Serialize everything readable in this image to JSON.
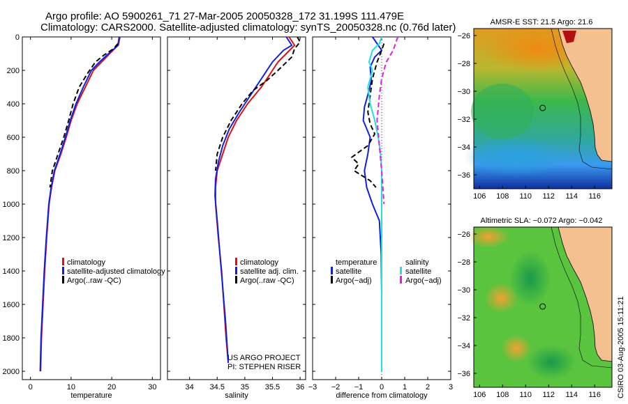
{
  "header": {
    "line1": "Argo profile: AO 5900261_71 27-Mar-2005 20050328_172 31.199S 111.479E",
    "line2": "Climatology: CARS2000. Satellite-adjusted climatology: synTS_20050328.nc (0.76d later)"
  },
  "colors": {
    "climatology": "#e01010",
    "satellite": "#1020e0",
    "argo": "#000000",
    "salinity": "#20e0e0",
    "argo_adj": "#e020e0",
    "land": "#f5c090"
  },
  "chart_data": [
    {
      "type": "line",
      "title": "",
      "xlabel": "temperature",
      "ylabel": "",
      "xlim": [
        -2,
        32
      ],
      "ylim": [
        0,
        2050
      ],
      "y_inverted": true,
      "x_ticks": [
        "0",
        "10",
        "20",
        "30"
      ],
      "y_ticks": [
        "0",
        "200",
        "400",
        "600",
        "800",
        "1000",
        "1200",
        "1400",
        "1600",
        "1800",
        "2000"
      ],
      "legend": [
        "climatology",
        "satellite-adjusted climatology",
        "Argo(..raw -QC)"
      ],
      "series": [
        {
          "name": "climatology",
          "style": "solid",
          "color": "#e01010",
          "points": [
            [
              21.8,
              0
            ],
            [
              21.5,
              50
            ],
            [
              19.5,
              100
            ],
            [
              17.5,
              150
            ],
            [
              15.5,
              200
            ],
            [
              13.5,
              300
            ],
            [
              11.5,
              400
            ],
            [
              10,
              500
            ],
            [
              8.8,
              600
            ],
            [
              7.5,
              700
            ],
            [
              6,
              800
            ],
            [
              5.2,
              900
            ],
            [
              4.6,
              1000
            ],
            [
              4,
              1200
            ],
            [
              3.5,
              1400
            ],
            [
              3.1,
              1600
            ],
            [
              2.7,
              1800
            ],
            [
              2.5,
              2000
            ]
          ]
        },
        {
          "name": "satellite-adjusted climatology",
          "style": "solid",
          "color": "#1020e0",
          "points": [
            [
              22,
              0
            ],
            [
              21.6,
              50
            ],
            [
              19.2,
              100
            ],
            [
              17,
              150
            ],
            [
              15,
              200
            ],
            [
              13,
              300
            ],
            [
              11.2,
              400
            ],
            [
              9.8,
              500
            ],
            [
              8.6,
              600
            ],
            [
              7.3,
              700
            ],
            [
              5.9,
              800
            ],
            [
              5.1,
              900
            ],
            [
              4.5,
              1000
            ],
            [
              3.9,
              1200
            ],
            [
              3.4,
              1400
            ],
            [
              3,
              1600
            ],
            [
              2.6,
              1800
            ],
            [
              2.4,
              2000
            ]
          ]
        },
        {
          "name": "Argo(..raw -QC)",
          "style": "dashed",
          "color": "#000000",
          "points": [
            [
              21.5,
              40
            ],
            [
              20.5,
              70
            ],
            [
              18,
              110
            ],
            [
              16,
              150
            ],
            [
              14,
              220
            ],
            [
              12,
              300
            ],
            [
              10.5,
              400
            ],
            [
              9.4,
              500
            ],
            [
              8.2,
              600
            ],
            [
              6.8,
              700
            ],
            [
              5.4,
              800
            ],
            [
              4.8,
              900
            ]
          ]
        }
      ]
    },
    {
      "type": "line",
      "title": "",
      "xlabel": "salinity",
      "ylabel": "",
      "xlim": [
        33.6,
        36.1
      ],
      "ylim": [
        0,
        2050
      ],
      "y_inverted": true,
      "x_ticks": [
        "34",
        "34.5",
        "35",
        "35.5",
        "36"
      ],
      "y_ticks": [],
      "legend": [
        "climatology",
        "satellite adj. clim.",
        "Argo(..raw -QC)"
      ],
      "annotations": [
        "US ARGO PROJECT",
        "PI: STEPHEN RISER"
      ],
      "series": [
        {
          "name": "climatology",
          "style": "solid",
          "color": "#e01010",
          "points": [
            [
              35.8,
              0
            ],
            [
              35.9,
              50
            ],
            [
              35.75,
              100
            ],
            [
              35.6,
              150
            ],
            [
              35.5,
              200
            ],
            [
              35.3,
              300
            ],
            [
              35.05,
              400
            ],
            [
              34.85,
              500
            ],
            [
              34.7,
              600
            ],
            [
              34.6,
              700
            ],
            [
              34.5,
              800
            ],
            [
              34.47,
              900
            ],
            [
              34.47,
              1000
            ],
            [
              34.52,
              1200
            ],
            [
              34.58,
              1400
            ],
            [
              34.62,
              1600
            ],
            [
              34.66,
              1800
            ],
            [
              34.7,
              1950
            ]
          ]
        },
        {
          "name": "satellite adj. clim.",
          "style": "solid",
          "color": "#1020e0",
          "points": [
            [
              35.75,
              0
            ],
            [
              35.85,
              50
            ],
            [
              35.7,
              80
            ],
            [
              35.5,
              150
            ],
            [
              35.3,
              250
            ],
            [
              35.1,
              350
            ],
            [
              34.9,
              450
            ],
            [
              34.72,
              550
            ],
            [
              34.6,
              650
            ],
            [
              34.52,
              750
            ],
            [
              34.47,
              850
            ],
            [
              34.46,
              950
            ],
            [
              34.5,
              1100
            ],
            [
              34.55,
              1300
            ],
            [
              34.6,
              1500
            ],
            [
              34.65,
              1700
            ],
            [
              34.7,
              1950
            ]
          ]
        },
        {
          "name": "Argo(..raw -QC)",
          "style": "dashed",
          "color": "#000000",
          "points": [
            [
              35.95,
              0
            ],
            [
              36,
              30
            ],
            [
              35.9,
              70
            ],
            [
              35.85,
              120
            ],
            [
              35.6,
              200
            ],
            [
              35.4,
              260
            ],
            [
              35.15,
              320
            ],
            [
              34.95,
              400
            ],
            [
              34.75,
              500
            ],
            [
              34.6,
              600
            ],
            [
              34.5,
              700
            ],
            [
              34.47,
              800
            ]
          ]
        }
      ]
    },
    {
      "type": "line",
      "title": "",
      "xlabel": "difference from climatology",
      "ylabel": "",
      "xlim": [
        -3,
        3
      ],
      "ylim": [
        0,
        2050
      ],
      "y_inverted": true,
      "x_ticks": [
        "−3",
        "−2",
        "−1",
        "0",
        "1",
        "2",
        "3"
      ],
      "y_ticks": [],
      "legend_left": [
        "temperature",
        "satellite",
        "Argo(−adj)"
      ],
      "legend_right": [
        "salinity",
        "satellite",
        "Argo(−adj)"
      ],
      "series": [
        {
          "name": "satellite",
          "style": "solid",
          "color": "#1020e0",
          "points": [
            [
              -0.4,
              0
            ],
            [
              -0.2,
              40
            ],
            [
              0,
              80
            ],
            [
              -0.3,
              120
            ],
            [
              -0.5,
              180
            ],
            [
              -0.45,
              260
            ],
            [
              -0.55,
              320
            ],
            [
              -0.75,
              420
            ],
            [
              -0.8,
              500
            ],
            [
              -0.5,
              600
            ],
            [
              -0.6,
              700
            ],
            [
              -0.75,
              800
            ],
            [
              -0.65,
              900
            ],
            [
              -0.4,
              1000
            ],
            [
              -0.1,
              1100
            ],
            [
              -0.02,
              1300
            ],
            [
              0,
              1550
            ]
          ]
        },
        {
          "name": "Argo(−adj)",
          "style": "dashed",
          "color": "#000000",
          "points": [
            [
              0.1,
              40
            ],
            [
              0,
              80
            ],
            [
              -0.2,
              150
            ],
            [
              -0.4,
              250
            ],
            [
              -0.5,
              350
            ],
            [
              -0.6,
              450
            ],
            [
              -0.5,
              520
            ],
            [
              -0.3,
              580
            ],
            [
              -0.6,
              650
            ],
            [
              -1.3,
              720
            ],
            [
              -1.0,
              760
            ],
            [
              -1.2,
              800
            ],
            [
              -0.5,
              860
            ],
            [
              -0.25,
              900
            ]
          ]
        },
        {
          "name": "salinity satellite",
          "style": "solid",
          "color": "#20e0e0",
          "points": [
            [
              0,
              0
            ],
            [
              -0.1,
              40
            ],
            [
              -0.4,
              80
            ],
            [
              -0.55,
              150
            ],
            [
              -0.4,
              200
            ],
            [
              -0.6,
              300
            ],
            [
              -0.5,
              400
            ],
            [
              -0.3,
              500
            ],
            [
              -0.15,
              600
            ],
            [
              -0.05,
              700
            ],
            [
              0,
              800
            ],
            [
              0,
              1000
            ],
            [
              0,
              1200
            ],
            [
              0,
              1500
            ],
            [
              0,
              1800
            ],
            [
              0,
              2000
            ]
          ]
        },
        {
          "name": "salinity Argo(−adj)",
          "style": "dashed",
          "color": "#e020e0",
          "points": [
            [
              0.7,
              0
            ],
            [
              0.5,
              80
            ],
            [
              0.2,
              150
            ],
            [
              0,
              250
            ],
            [
              -0.1,
              350
            ],
            [
              -0.2,
              500
            ],
            [
              -0.1,
              650
            ],
            [
              0,
              800
            ],
            [
              0.1,
              1000
            ]
          ]
        }
      ]
    },
    {
      "type": "heatmap",
      "title": "AMSR-E SST: 21.5 Argo: 21.6",
      "xlabel": "",
      "ylabel": "",
      "xlim": [
        105.5,
        117.5
      ],
      "ylim": [
        -37,
        -25.5
      ],
      "x_ticks": [
        "106",
        "108",
        "110",
        "112",
        "114",
        "116"
      ],
      "y_ticks": [
        "−26",
        "−28",
        "−30",
        "−32",
        "−34",
        "−36"
      ],
      "marker": {
        "lon": 111.479,
        "lat": -31.199
      }
    },
    {
      "type": "heatmap",
      "title": "Altimetric SLA: −0.072 Argo: −0.042",
      "xlabel": "",
      "ylabel": "",
      "xlim": [
        105.5,
        117.5
      ],
      "ylim": [
        -37,
        -25.5
      ],
      "x_ticks": [
        "106",
        "108",
        "110",
        "112",
        "114",
        "116"
      ],
      "y_ticks": [
        "−26",
        "−28",
        "−30",
        "−32",
        "−34",
        "−36"
      ],
      "marker": {
        "lon": 111.479,
        "lat": -31.199
      }
    }
  ],
  "footer": {
    "credit": "CSIRO 03-Aug-2005 15:11:21"
  }
}
